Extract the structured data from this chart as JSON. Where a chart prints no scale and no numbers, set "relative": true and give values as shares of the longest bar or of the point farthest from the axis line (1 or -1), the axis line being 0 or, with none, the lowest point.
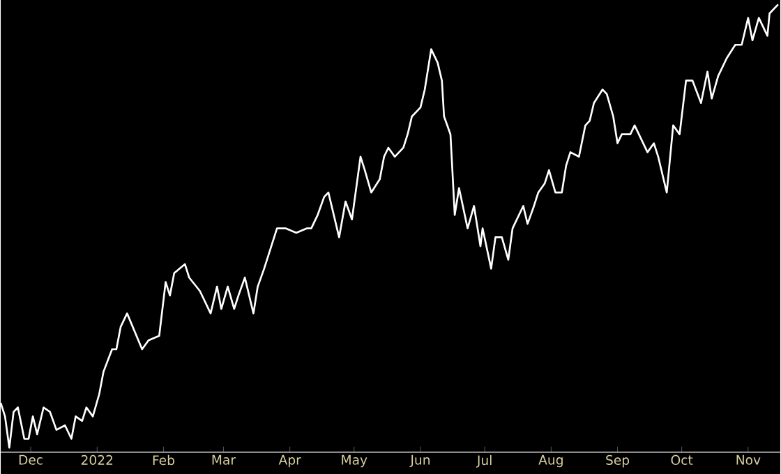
{
  "chart_data": {
    "type": "line",
    "relative": true,
    "xlim": [
      "2021-11-17",
      "2022-11-16"
    ],
    "xticks": [
      {
        "value": "2021-12-01",
        "label": "Dec"
      },
      {
        "value": "2022-01-01",
        "label": "2022"
      },
      {
        "value": "2022-02-01",
        "label": "Feb"
      },
      {
        "value": "2022-03-01",
        "label": "Mar"
      },
      {
        "value": "2022-04-01",
        "label": "Apr"
      },
      {
        "value": "2022-05-01",
        "label": "May"
      },
      {
        "value": "2022-06-01",
        "label": "Jun"
      },
      {
        "value": "2022-07-01",
        "label": "Jul"
      },
      {
        "value": "2022-08-01",
        "label": "Aug"
      },
      {
        "value": "2022-09-01",
        "label": "Sep"
      },
      {
        "value": "2022-10-01",
        "label": "Oct"
      },
      {
        "value": "2022-11-01",
        "label": "Nov"
      }
    ],
    "x": [
      "2021-11-17",
      "2021-11-19",
      "2021-11-21",
      "2021-11-23",
      "2021-11-25",
      "2021-11-28",
      "2021-11-30",
      "2021-12-02",
      "2021-12-04",
      "2021-12-07",
      "2021-12-10",
      "2021-12-13",
      "2021-12-17",
      "2021-12-20",
      "2021-12-22",
      "2021-12-25",
      "2021-12-27",
      "2021-12-30",
      "2022-01-02",
      "2022-01-04",
      "2022-01-08",
      "2022-01-10",
      "2022-01-12",
      "2022-01-15",
      "2022-01-22",
      "2022-01-25",
      "2022-01-30",
      "2022-02-02",
      "2022-02-04",
      "2022-02-06",
      "2022-02-11",
      "2022-02-13",
      "2022-02-18",
      "2022-02-23",
      "2022-02-26",
      "2022-02-28",
      "2022-03-03",
      "2022-03-06",
      "2022-03-08",
      "2022-03-11",
      "2022-03-15",
      "2022-03-17",
      "2022-03-20",
      "2022-03-26",
      "2022-03-30",
      "2022-04-04",
      "2022-04-09",
      "2022-04-11",
      "2022-04-14",
      "2022-04-17",
      "2022-04-19",
      "2022-04-24",
      "2022-04-27",
      "2022-04-30",
      "2022-05-04",
      "2022-05-06",
      "2022-05-09",
      "2022-05-13",
      "2022-05-15",
      "2022-05-17",
      "2022-05-20",
      "2022-05-24",
      "2022-05-26",
      "2022-05-28",
      "2022-05-30",
      "2022-06-01",
      "2022-06-03",
      "2022-06-06",
      "2022-06-09",
      "2022-06-11",
      "2022-06-12",
      "2022-06-15",
      "2022-06-17",
      "2022-06-19",
      "2022-06-23",
      "2022-06-26",
      "2022-06-29",
      "2022-06-30",
      "2022-07-04",
      "2022-07-06",
      "2022-07-09",
      "2022-07-12",
      "2022-07-14",
      "2022-07-19",
      "2022-07-21",
      "2022-07-24",
      "2022-07-26",
      "2022-07-29",
      "2022-07-31",
      "2022-08-03",
      "2022-08-06",
      "2022-08-08",
      "2022-08-10",
      "2022-08-14",
      "2022-08-17",
      "2022-08-19",
      "2022-08-21",
      "2022-08-25",
      "2022-08-27",
      "2022-08-30",
      "2022-09-01",
      "2022-09-03",
      "2022-09-07",
      "2022-09-09",
      "2022-09-12",
      "2022-09-15",
      "2022-09-18",
      "2022-09-20",
      "2022-09-24",
      "2022-09-27",
      "2022-09-30",
      "2022-10-03",
      "2022-10-06",
      "2022-10-10",
      "2022-10-13",
      "2022-10-15",
      "2022-10-18",
      "2022-10-22",
      "2022-10-26",
      "2022-10-29",
      "2022-11-01",
      "2022-11-03",
      "2022-11-06",
      "2022-11-10",
      "2022-11-11",
      "2022-11-15"
    ],
    "series": [
      {
        "color": "#ffffff",
        "values": [
          0.11,
          0.08,
          0.01,
          0.09,
          0.1,
          0.03,
          0.03,
          0.08,
          0.04,
          0.1,
          0.09,
          0.05,
          0.06,
          0.03,
          0.08,
          0.07,
          0.1,
          0.08,
          0.13,
          0.18,
          0.23,
          0.23,
          0.28,
          0.31,
          0.23,
          0.25,
          0.26,
          0.38,
          0.35,
          0.4,
          0.42,
          0.39,
          0.36,
          0.31,
          0.37,
          0.32,
          0.37,
          0.32,
          0.35,
          0.39,
          0.31,
          0.37,
          0.41,
          0.5,
          0.5,
          0.49,
          0.5,
          0.5,
          0.53,
          0.57,
          0.58,
          0.48,
          0.56,
          0.52,
          0.66,
          0.63,
          0.58,
          0.61,
          0.66,
          0.68,
          0.66,
          0.68,
          0.71,
          0.75,
          0.76,
          0.77,
          0.81,
          0.9,
          0.87,
          0.83,
          0.75,
          0.71,
          0.53,
          0.59,
          0.5,
          0.55,
          0.46,
          0.5,
          0.41,
          0.48,
          0.48,
          0.43,
          0.5,
          0.55,
          0.51,
          0.55,
          0.58,
          0.6,
          0.63,
          0.58,
          0.58,
          0.64,
          0.67,
          0.66,
          0.73,
          0.74,
          0.78,
          0.81,
          0.8,
          0.75,
          0.69,
          0.71,
          0.71,
          0.73,
          0.7,
          0.67,
          0.69,
          0.66,
          0.58,
          0.73,
          0.71,
          0.83,
          0.83,
          0.78,
          0.85,
          0.79,
          0.84,
          0.88,
          0.91,
          0.91,
          0.97,
          0.92,
          0.97,
          0.93,
          0.98,
          1
        ]
      }
    ]
  }
}
